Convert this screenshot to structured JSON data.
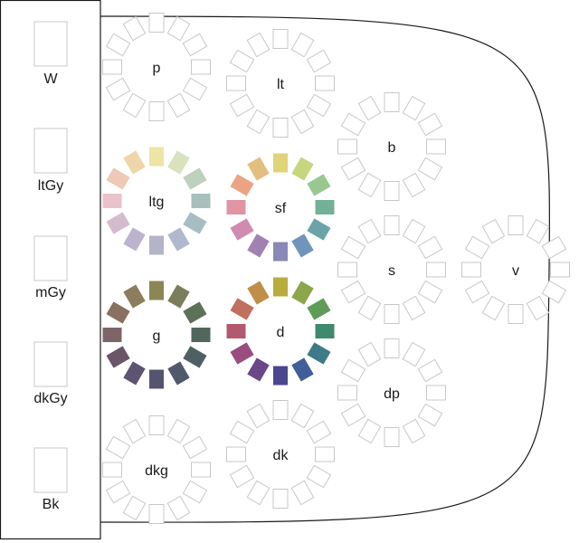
{
  "gray_scale": [
    {
      "label": "W"
    },
    {
      "label": "ltGy"
    },
    {
      "label": "mGy"
    },
    {
      "label": "dkGy"
    },
    {
      "label": "Bk"
    }
  ],
  "tones": [
    {
      "id": "p",
      "label": "p",
      "filled": false,
      "colors": []
    },
    {
      "id": "lt",
      "label": "lt",
      "filled": false,
      "colors": []
    },
    {
      "id": "b",
      "label": "b",
      "filled": false,
      "colors": []
    },
    {
      "id": "ltg",
      "label": "ltg",
      "filled": true,
      "colors": [
        "#eee4a4",
        "#d8e2bc",
        "#bed0be",
        "#a8c0bc",
        "#a8bcc4",
        "#b0b8cc",
        "#b4b4c8",
        "#bcb4cc",
        "#d4bcd0",
        "#eac2cc",
        "#f0c8b8",
        "#eed6aa"
      ]
    },
    {
      "id": "sf",
      "label": "sf",
      "filled": true,
      "colors": [
        "#e0d478",
        "#c6d67e",
        "#98c890",
        "#72b098",
        "#6aa4a8",
        "#7094bc",
        "#8a88b8",
        "#a082b2",
        "#d08cb0",
        "#e094a4",
        "#eaa484",
        "#e4be7e"
      ]
    },
    {
      "id": "s",
      "label": "s",
      "filled": false,
      "colors": []
    },
    {
      "id": "v",
      "label": "v",
      "filled": false,
      "colors": []
    },
    {
      "id": "g",
      "label": "g",
      "filled": true,
      "colors": [
        "#8a8656",
        "#7a7e5c",
        "#5e7058",
        "#52665e",
        "#4e6064",
        "#52586c",
        "#545370",
        "#5c5470",
        "#6a5668",
        "#7e6468",
        "#8a7060",
        "#8c7e5c"
      ]
    },
    {
      "id": "d",
      "label": "d",
      "filled": true,
      "colors": [
        "#b8ac3c",
        "#8ca64a",
        "#5e9c58",
        "#3e8a6e",
        "#3e7a88",
        "#425e98",
        "#4c4690",
        "#6a4888",
        "#9a4c80",
        "#b45870",
        "#c0705c",
        "#c08e48"
      ]
    },
    {
      "id": "dp",
      "label": "dp",
      "filled": false,
      "colors": []
    },
    {
      "id": "dkg",
      "label": "dkg",
      "filled": false,
      "colors": []
    },
    {
      "id": "dk",
      "label": "dk",
      "filled": false,
      "colors": []
    }
  ]
}
